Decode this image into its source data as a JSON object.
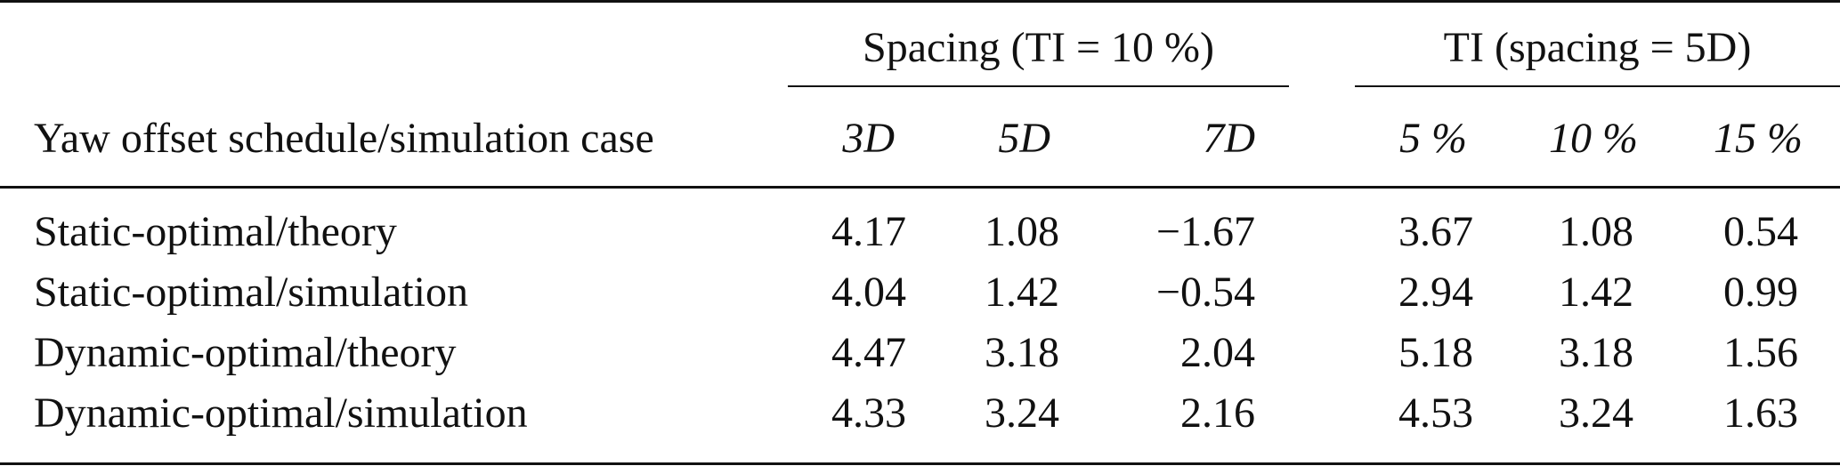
{
  "table": {
    "stub_header": "Yaw offset schedule/simulation case",
    "groups": [
      {
        "label": "Spacing (TI = 10 %)"
      },
      {
        "label": "TI (spacing = 5D)"
      }
    ],
    "columns": [
      "3D",
      "5D",
      "7D",
      "5 %",
      "10 %",
      "15 %"
    ],
    "rows": [
      {
        "label": "Static-optimal/theory",
        "values": [
          "4.17",
          "1.08",
          "−1.67",
          "3.67",
          "1.08",
          "0.54"
        ]
      },
      {
        "label": "Static-optimal/simulation",
        "values": [
          "4.04",
          "1.42",
          "−0.54",
          "2.94",
          "1.42",
          "0.99"
        ]
      },
      {
        "label": "Dynamic-optimal/theory",
        "values": [
          "4.47",
          "3.18",
          "2.04",
          "5.18",
          "3.18",
          "1.56"
        ]
      },
      {
        "label": "Dynamic-optimal/simulation",
        "values": [
          "4.33",
          "3.24",
          "2.16",
          "4.53",
          "3.24",
          "1.63"
        ]
      }
    ]
  }
}
